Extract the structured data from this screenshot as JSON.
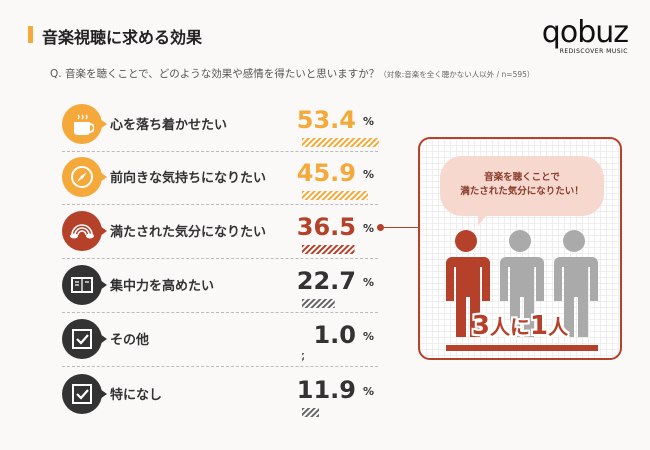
{
  "title": "音楽視聴に求める効果",
  "logo": {
    "word": "qobuz",
    "tagline": "REDISCOVER MUSIC"
  },
  "question": "Q.  音楽を聴くことで、どのような効果や感情を得たいと思いますか？",
  "question_note": "（対象:音楽を全く聴かない人以外 / n=595）",
  "colors": {
    "orange": "#f4a93a",
    "red": "#b5412a",
    "dark": "#333333",
    "gray": "#aaaaaa"
  },
  "unit": "%",
  "chart_data": {
    "type": "bar",
    "categories": [
      "心を落ち着かせたい",
      "前向きな気持ちになりたい",
      "満たされた気分になりたい",
      "集中力を高めたい",
      "その他",
      "特になし"
    ],
    "values": [
      53.4,
      45.9,
      36.5,
      22.7,
      1.0,
      11.9
    ],
    "value_labels": [
      "53.4",
      "45.9",
      "36.5",
      "22.7",
      "1.0",
      "11.9"
    ],
    "icons": [
      "coffee-cup-icon",
      "compass-icon",
      "rainbow-icon",
      "book-icon",
      "checkbox-icon",
      "checkbox-icon"
    ],
    "row_colors": [
      "#f4a93a",
      "#f4a93a",
      "#b5412a",
      "#333333",
      "#333333",
      "#333333"
    ],
    "ylabel": "%"
  },
  "callout": {
    "bubble_line1": "音楽を聴くことで",
    "bubble_line2": "満たされた気分になりたい！",
    "ratio_a": "3",
    "ratio_b": "人に",
    "ratio_c": "1",
    "ratio_d": "人"
  }
}
